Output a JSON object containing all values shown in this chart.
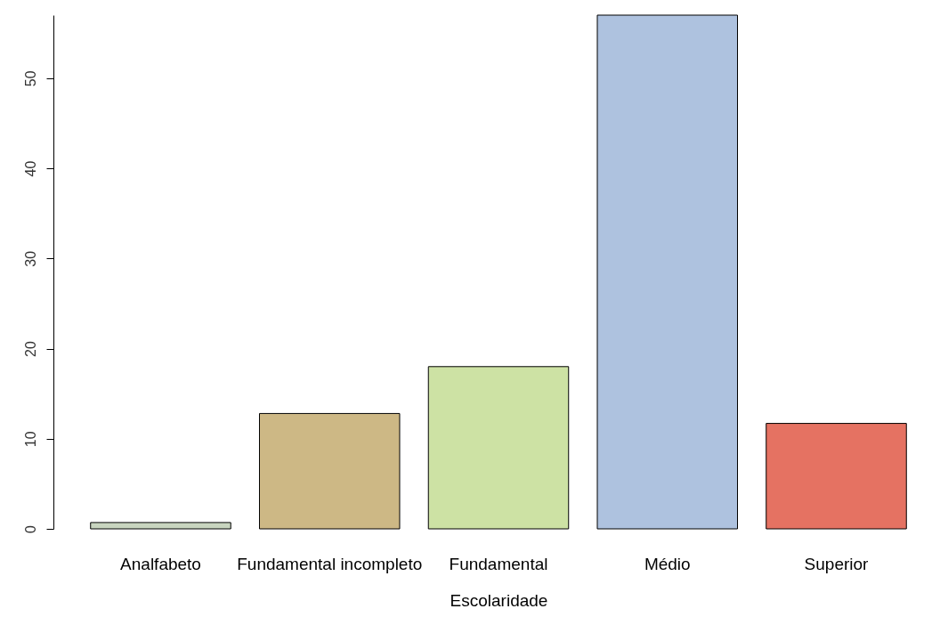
{
  "chart_data": {
    "type": "bar",
    "xlabel": "Escolaridade",
    "categories": [
      "Analfabeto",
      "Fundamental incompleto",
      "Fundamental",
      "Médio",
      "Superior"
    ],
    "values": [
      0.7,
      12.8,
      18,
      57,
      11.7
    ],
    "colors": [
      "#c8d5bf",
      "#cdb885",
      "#cde2a4",
      "#aec2df",
      "#e57262"
    ],
    "ylim": [
      0,
      57
    ],
    "yticks": [
      0,
      10,
      20,
      30,
      40,
      50
    ],
    "grid": false
  }
}
